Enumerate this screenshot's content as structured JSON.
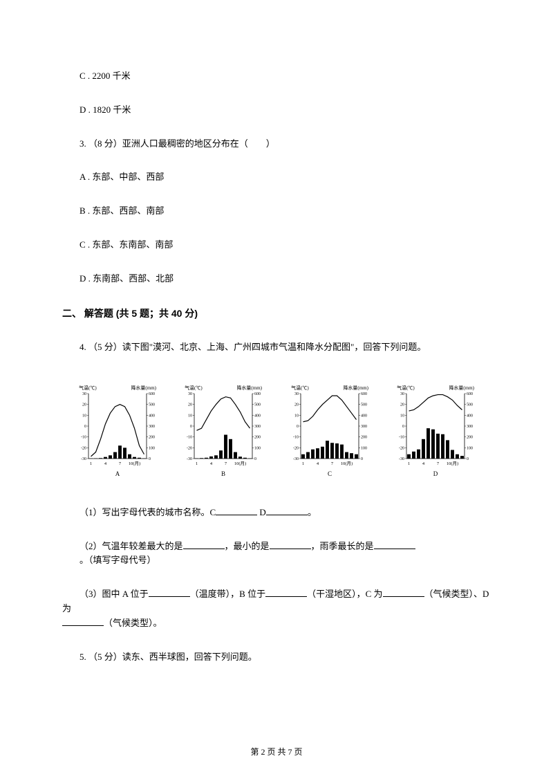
{
  "options": {
    "c": "C . 2200 千米",
    "d": "D . 1820 千米"
  },
  "q3": {
    "stem": "3. （8 分）亚洲人口最稠密的地区分布在（　　）",
    "a": "A . 东部、中部、西部",
    "b": "B . 东部、西部、南部",
    "c": "C . 东部、东南部、南部",
    "d": "D . 东南部、西部、北部"
  },
  "section2": {
    "title": "二、 解答题 (共 5 题；共 40 分)"
  },
  "q4": {
    "stem": "4. （5 分）读下图\"漠河、北京、上海、广州四城市气温和降水分配图\"，回答下列问题。",
    "sub1_prefix": "（1）写出字母代表的城市名称。C",
    "sub1_mid": "  D",
    "sub1_suffix": "。",
    "sub2_prefix": "（2）气温年较差最大的是",
    "sub2_mid1": "，最小的是",
    "sub2_mid2": "，雨季最长的是",
    "sub2_suffix": "。（填写字母代号）",
    "sub3_prefix": "（3）图中 A 位于",
    "sub3_mid1": "（温度带），B 位于",
    "sub3_mid2": "（干湿地区），C 为",
    "sub3_mid3": "（气候类型）、D 为",
    "sub3_suffix": "（气候类型）。"
  },
  "q5": {
    "stem": "5. （5 分）读东、西半球图，回答下列问题。"
  },
  "footer": {
    "text": "第 2 页 共 7 页"
  },
  "charts": [
    {
      "label": "A",
      "temp_label": "气温(℃)",
      "precip_label": "降水量(mm)",
      "temp_ticks": [
        -30,
        -20,
        -10,
        0,
        10,
        20,
        30
      ],
      "precip_ticks": [
        0,
        100,
        200,
        300,
        400,
        500,
        600
      ],
      "x_ticks": [
        "1",
        "4",
        "7",
        "10(月)"
      ],
      "temp_curve": [
        -28,
        -24,
        -12,
        2,
        12,
        18,
        20,
        18,
        10,
        -2,
        -18,
        -26
      ],
      "precip_bars": [
        2,
        3,
        5,
        15,
        30,
        60,
        120,
        100,
        40,
        15,
        8,
        3
      ],
      "colors": {
        "line": "#000000",
        "bar": "#000000",
        "bg": "#ffffff"
      }
    },
    {
      "label": "B",
      "temp_label": "气温(℃)",
      "precip_label": "降水量(mm)",
      "temp_ticks": [
        -30,
        -20,
        -10,
        0,
        10,
        20,
        30
      ],
      "precip_ticks": [
        0,
        100,
        200,
        300,
        400,
        500,
        600
      ],
      "x_ticks": [
        "1",
        "4",
        "7",
        "10(月)"
      ],
      "temp_curve": [
        -4,
        -2,
        6,
        14,
        20,
        25,
        27,
        26,
        20,
        13,
        4,
        -2
      ],
      "precip_bars": [
        3,
        5,
        8,
        20,
        30,
        75,
        220,
        180,
        60,
        18,
        8,
        3
      ],
      "colors": {
        "line": "#000000",
        "bar": "#000000",
        "bg": "#ffffff"
      }
    },
    {
      "label": "C",
      "temp_label": "气温(℃)",
      "precip_label": "降水量(mm)",
      "temp_ticks": [
        -30,
        -20,
        -10,
        0,
        10,
        20,
        30
      ],
      "precip_ticks": [
        0,
        100,
        200,
        300,
        400,
        500,
        600
      ],
      "x_ticks": [
        "1",
        "4",
        "7",
        "10(月)"
      ],
      "temp_curve": [
        4,
        5,
        9,
        15,
        20,
        24,
        28,
        28,
        24,
        18,
        12,
        6
      ],
      "precip_bars": [
        40,
        60,
        85,
        95,
        110,
        165,
        145,
        140,
        130,
        60,
        50,
        40
      ],
      "colors": {
        "line": "#000000",
        "bar": "#000000",
        "bg": "#ffffff"
      }
    },
    {
      "label": "D",
      "temp_label": "气温(℃)",
      "precip_label": "降水量(mm)",
      "temp_ticks": [
        -30,
        -20,
        -10,
        0,
        10,
        20,
        30
      ],
      "precip_ticks": [
        0,
        100,
        200,
        300,
        400,
        500,
        600
      ],
      "x_ticks": [
        "1",
        "4",
        "7",
        "10(月)"
      ],
      "temp_curve": [
        14,
        15,
        18,
        22,
        26,
        28,
        29,
        29,
        27,
        24,
        19,
        15
      ],
      "precip_bars": [
        40,
        65,
        85,
        180,
        280,
        270,
        230,
        225,
        170,
        80,
        40,
        25
      ],
      "colors": {
        "line": "#000000",
        "bar": "#000000",
        "bg": "#ffffff"
      }
    }
  ]
}
